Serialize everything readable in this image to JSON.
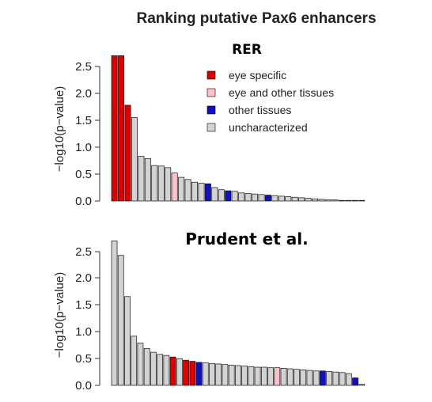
{
  "figure": {
    "title": "Ranking putative Pax6 enhancers"
  },
  "legend": {
    "items": [
      {
        "key": "eye",
        "label": "eye specific"
      },
      {
        "key": "eye_other",
        "label": "eye and other tissues"
      },
      {
        "key": "other",
        "label": "other tissues"
      },
      {
        "key": "unchar",
        "label": "uncharacterized"
      }
    ]
  },
  "colors": {
    "eye": "#dd0000",
    "eye_other": "#ffc0cb",
    "other": "#1010c0",
    "unchar": "#d3d3d3"
  },
  "chart_data": [
    {
      "type": "bar",
      "title": "RER",
      "ylabel": "−log10(p−value)",
      "ylim": [
        0,
        2.7
      ],
      "yticks": [
        "0.0",
        "0.5",
        "1.0",
        "1.5",
        "2.0",
        "2.5"
      ],
      "values": [
        2.7,
        2.7,
        1.78,
        1.55,
        0.83,
        0.79,
        0.66,
        0.65,
        0.62,
        0.52,
        0.44,
        0.4,
        0.35,
        0.33,
        0.32,
        0.25,
        0.21,
        0.19,
        0.18,
        0.15,
        0.14,
        0.13,
        0.12,
        0.11,
        0.1,
        0.09,
        0.08,
        0.07,
        0.06,
        0.05,
        0.04,
        0.03,
        0.02,
        0.02,
        0.01,
        0.01,
        0.01,
        0.01
      ],
      "categories": [
        "eye",
        "eye",
        "eye",
        "unchar",
        "unchar",
        "unchar",
        "unchar",
        "unchar",
        "unchar",
        "eye_other",
        "unchar",
        "unchar",
        "unchar",
        "unchar",
        "other",
        "unchar",
        "unchar",
        "other",
        "unchar",
        "unchar",
        "unchar",
        "unchar",
        "unchar",
        "other",
        "unchar",
        "unchar",
        "unchar",
        "unchar",
        "unchar",
        "unchar",
        "unchar",
        "unchar",
        "unchar",
        "unchar",
        "unchar",
        "unchar",
        "unchar",
        "unchar"
      ]
    },
    {
      "type": "bar",
      "title": "Prudent et al.",
      "ylabel": "−log10(p−value)",
      "ylim": [
        0,
        2.7
      ],
      "yticks": [
        "0.0",
        "0.5",
        "1.0",
        "1.5",
        "2.0",
        "2.5"
      ],
      "values": [
        2.7,
        2.43,
        1.66,
        0.92,
        0.79,
        0.69,
        0.62,
        0.58,
        0.56,
        0.53,
        0.5,
        0.47,
        0.45,
        0.43,
        0.42,
        0.41,
        0.4,
        0.39,
        0.38,
        0.37,
        0.36,
        0.35,
        0.34,
        0.34,
        0.33,
        0.33,
        0.32,
        0.31,
        0.3,
        0.29,
        0.28,
        0.27,
        0.27,
        0.26,
        0.25,
        0.24,
        0.22,
        0.14,
        0.02
      ],
      "categories": [
        "unchar",
        "unchar",
        "unchar",
        "unchar",
        "unchar",
        "unchar",
        "unchar",
        "unchar",
        "unchar",
        "eye",
        "unchar",
        "eye",
        "eye",
        "other",
        "unchar",
        "unchar",
        "unchar",
        "unchar",
        "unchar",
        "unchar",
        "unchar",
        "unchar",
        "unchar",
        "unchar",
        "unchar",
        "eye_other",
        "unchar",
        "unchar",
        "unchar",
        "unchar",
        "unchar",
        "unchar",
        "other",
        "unchar",
        "unchar",
        "unchar",
        "unchar",
        "other",
        "unchar"
      ]
    }
  ]
}
